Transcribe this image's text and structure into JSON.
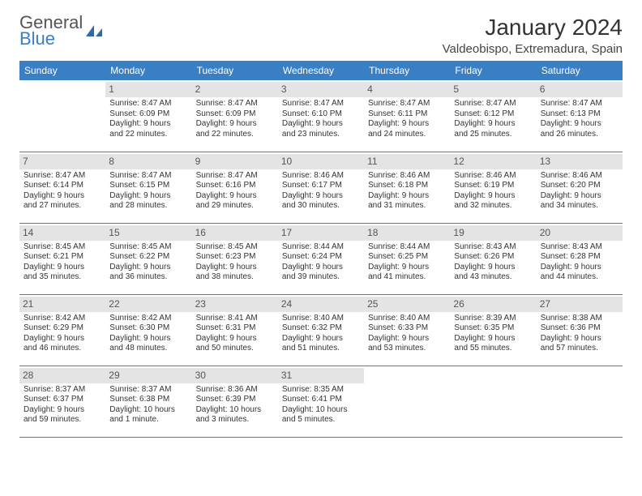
{
  "logo": {
    "line1": "General",
    "line2": "Blue"
  },
  "title": "January 2024",
  "location": "Valdeobispo, Extremadura, Spain",
  "colors": {
    "header_bg": "#3a7ec4",
    "header_text": "#ffffff",
    "daynum_bg": "#e4e4e4",
    "row_border": "#3a7ec4",
    "body_text": "#333333",
    "page_bg": "#ffffff"
  },
  "weekdays": [
    "Sunday",
    "Monday",
    "Tuesday",
    "Wednesday",
    "Thursday",
    "Friday",
    "Saturday"
  ],
  "weeks": [
    [
      null,
      {
        "n": "1",
        "sunrise": "Sunrise: 8:47 AM",
        "sunset": "Sunset: 6:09 PM",
        "daylight1": "Daylight: 9 hours",
        "daylight2": "and 22 minutes."
      },
      {
        "n": "2",
        "sunrise": "Sunrise: 8:47 AM",
        "sunset": "Sunset: 6:09 PM",
        "daylight1": "Daylight: 9 hours",
        "daylight2": "and 22 minutes."
      },
      {
        "n": "3",
        "sunrise": "Sunrise: 8:47 AM",
        "sunset": "Sunset: 6:10 PM",
        "daylight1": "Daylight: 9 hours",
        "daylight2": "and 23 minutes."
      },
      {
        "n": "4",
        "sunrise": "Sunrise: 8:47 AM",
        "sunset": "Sunset: 6:11 PM",
        "daylight1": "Daylight: 9 hours",
        "daylight2": "and 24 minutes."
      },
      {
        "n": "5",
        "sunrise": "Sunrise: 8:47 AM",
        "sunset": "Sunset: 6:12 PM",
        "daylight1": "Daylight: 9 hours",
        "daylight2": "and 25 minutes."
      },
      {
        "n": "6",
        "sunrise": "Sunrise: 8:47 AM",
        "sunset": "Sunset: 6:13 PM",
        "daylight1": "Daylight: 9 hours",
        "daylight2": "and 26 minutes."
      }
    ],
    [
      {
        "n": "7",
        "sunrise": "Sunrise: 8:47 AM",
        "sunset": "Sunset: 6:14 PM",
        "daylight1": "Daylight: 9 hours",
        "daylight2": "and 27 minutes."
      },
      {
        "n": "8",
        "sunrise": "Sunrise: 8:47 AM",
        "sunset": "Sunset: 6:15 PM",
        "daylight1": "Daylight: 9 hours",
        "daylight2": "and 28 minutes."
      },
      {
        "n": "9",
        "sunrise": "Sunrise: 8:47 AM",
        "sunset": "Sunset: 6:16 PM",
        "daylight1": "Daylight: 9 hours",
        "daylight2": "and 29 minutes."
      },
      {
        "n": "10",
        "sunrise": "Sunrise: 8:46 AM",
        "sunset": "Sunset: 6:17 PM",
        "daylight1": "Daylight: 9 hours",
        "daylight2": "and 30 minutes."
      },
      {
        "n": "11",
        "sunrise": "Sunrise: 8:46 AM",
        "sunset": "Sunset: 6:18 PM",
        "daylight1": "Daylight: 9 hours",
        "daylight2": "and 31 minutes."
      },
      {
        "n": "12",
        "sunrise": "Sunrise: 8:46 AM",
        "sunset": "Sunset: 6:19 PM",
        "daylight1": "Daylight: 9 hours",
        "daylight2": "and 32 minutes."
      },
      {
        "n": "13",
        "sunrise": "Sunrise: 8:46 AM",
        "sunset": "Sunset: 6:20 PM",
        "daylight1": "Daylight: 9 hours",
        "daylight2": "and 34 minutes."
      }
    ],
    [
      {
        "n": "14",
        "sunrise": "Sunrise: 8:45 AM",
        "sunset": "Sunset: 6:21 PM",
        "daylight1": "Daylight: 9 hours",
        "daylight2": "and 35 minutes."
      },
      {
        "n": "15",
        "sunrise": "Sunrise: 8:45 AM",
        "sunset": "Sunset: 6:22 PM",
        "daylight1": "Daylight: 9 hours",
        "daylight2": "and 36 minutes."
      },
      {
        "n": "16",
        "sunrise": "Sunrise: 8:45 AM",
        "sunset": "Sunset: 6:23 PM",
        "daylight1": "Daylight: 9 hours",
        "daylight2": "and 38 minutes."
      },
      {
        "n": "17",
        "sunrise": "Sunrise: 8:44 AM",
        "sunset": "Sunset: 6:24 PM",
        "daylight1": "Daylight: 9 hours",
        "daylight2": "and 39 minutes."
      },
      {
        "n": "18",
        "sunrise": "Sunrise: 8:44 AM",
        "sunset": "Sunset: 6:25 PM",
        "daylight1": "Daylight: 9 hours",
        "daylight2": "and 41 minutes."
      },
      {
        "n": "19",
        "sunrise": "Sunrise: 8:43 AM",
        "sunset": "Sunset: 6:26 PM",
        "daylight1": "Daylight: 9 hours",
        "daylight2": "and 43 minutes."
      },
      {
        "n": "20",
        "sunrise": "Sunrise: 8:43 AM",
        "sunset": "Sunset: 6:28 PM",
        "daylight1": "Daylight: 9 hours",
        "daylight2": "and 44 minutes."
      }
    ],
    [
      {
        "n": "21",
        "sunrise": "Sunrise: 8:42 AM",
        "sunset": "Sunset: 6:29 PM",
        "daylight1": "Daylight: 9 hours",
        "daylight2": "and 46 minutes."
      },
      {
        "n": "22",
        "sunrise": "Sunrise: 8:42 AM",
        "sunset": "Sunset: 6:30 PM",
        "daylight1": "Daylight: 9 hours",
        "daylight2": "and 48 minutes."
      },
      {
        "n": "23",
        "sunrise": "Sunrise: 8:41 AM",
        "sunset": "Sunset: 6:31 PM",
        "daylight1": "Daylight: 9 hours",
        "daylight2": "and 50 minutes."
      },
      {
        "n": "24",
        "sunrise": "Sunrise: 8:40 AM",
        "sunset": "Sunset: 6:32 PM",
        "daylight1": "Daylight: 9 hours",
        "daylight2": "and 51 minutes."
      },
      {
        "n": "25",
        "sunrise": "Sunrise: 8:40 AM",
        "sunset": "Sunset: 6:33 PM",
        "daylight1": "Daylight: 9 hours",
        "daylight2": "and 53 minutes."
      },
      {
        "n": "26",
        "sunrise": "Sunrise: 8:39 AM",
        "sunset": "Sunset: 6:35 PM",
        "daylight1": "Daylight: 9 hours",
        "daylight2": "and 55 minutes."
      },
      {
        "n": "27",
        "sunrise": "Sunrise: 8:38 AM",
        "sunset": "Sunset: 6:36 PM",
        "daylight1": "Daylight: 9 hours",
        "daylight2": "and 57 minutes."
      }
    ],
    [
      {
        "n": "28",
        "sunrise": "Sunrise: 8:37 AM",
        "sunset": "Sunset: 6:37 PM",
        "daylight1": "Daylight: 9 hours",
        "daylight2": "and 59 minutes."
      },
      {
        "n": "29",
        "sunrise": "Sunrise: 8:37 AM",
        "sunset": "Sunset: 6:38 PM",
        "daylight1": "Daylight: 10 hours",
        "daylight2": "and 1 minute."
      },
      {
        "n": "30",
        "sunrise": "Sunrise: 8:36 AM",
        "sunset": "Sunset: 6:39 PM",
        "daylight1": "Daylight: 10 hours",
        "daylight2": "and 3 minutes."
      },
      {
        "n": "31",
        "sunrise": "Sunrise: 8:35 AM",
        "sunset": "Sunset: 6:41 PM",
        "daylight1": "Daylight: 10 hours",
        "daylight2": "and 5 minutes."
      },
      null,
      null,
      null
    ]
  ]
}
